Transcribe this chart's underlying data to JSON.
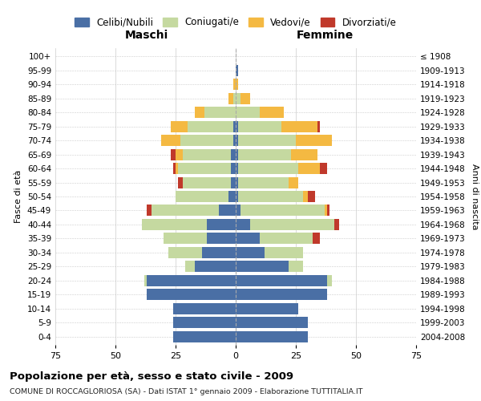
{
  "age_groups": [
    "0-4",
    "5-9",
    "10-14",
    "15-19",
    "20-24",
    "25-29",
    "30-34",
    "35-39",
    "40-44",
    "45-49",
    "50-54",
    "55-59",
    "60-64",
    "65-69",
    "70-74",
    "75-79",
    "80-84",
    "85-89",
    "90-94",
    "95-99",
    "100+"
  ],
  "birth_years": [
    "2004-2008",
    "1999-2003",
    "1994-1998",
    "1989-1993",
    "1984-1988",
    "1979-1983",
    "1974-1978",
    "1969-1973",
    "1964-1968",
    "1959-1963",
    "1954-1958",
    "1949-1953",
    "1944-1948",
    "1939-1943",
    "1934-1938",
    "1929-1933",
    "1924-1928",
    "1919-1923",
    "1914-1918",
    "1909-1913",
    "≤ 1908"
  ],
  "colors": {
    "celibi": "#4a6fa5",
    "coniugati": "#c5d9a0",
    "vedovi": "#f4b942",
    "divorziati": "#c0392b"
  },
  "maschi": {
    "celibi": [
      26,
      26,
      26,
      37,
      37,
      17,
      14,
      12,
      12,
      7,
      3,
      2,
      2,
      2,
      1,
      1,
      0,
      0,
      0,
      0,
      0
    ],
    "coniugati": [
      0,
      0,
      0,
      0,
      1,
      4,
      14,
      18,
      27,
      28,
      22,
      20,
      22,
      20,
      22,
      19,
      13,
      1,
      0,
      0,
      0
    ],
    "vedovi": [
      0,
      0,
      0,
      0,
      0,
      0,
      0,
      0,
      0,
      0,
      0,
      0,
      1,
      3,
      8,
      7,
      4,
      2,
      1,
      0,
      0
    ],
    "divorziati": [
      0,
      0,
      0,
      0,
      0,
      0,
      0,
      0,
      0,
      2,
      0,
      2,
      1,
      2,
      0,
      0,
      0,
      0,
      0,
      0,
      0
    ]
  },
  "femmine": {
    "celibi": [
      30,
      30,
      26,
      38,
      38,
      22,
      12,
      10,
      6,
      2,
      1,
      1,
      1,
      1,
      1,
      1,
      0,
      0,
      0,
      1,
      0
    ],
    "coniugati": [
      0,
      0,
      0,
      0,
      2,
      6,
      16,
      22,
      35,
      35,
      27,
      21,
      25,
      22,
      24,
      18,
      10,
      2,
      0,
      0,
      0
    ],
    "vedovi": [
      0,
      0,
      0,
      0,
      0,
      0,
      0,
      0,
      0,
      1,
      2,
      4,
      9,
      11,
      15,
      15,
      10,
      4,
      1,
      0,
      0
    ],
    "divorziati": [
      0,
      0,
      0,
      0,
      0,
      0,
      0,
      3,
      2,
      1,
      3,
      0,
      3,
      0,
      0,
      1,
      0,
      0,
      0,
      0,
      0
    ]
  },
  "xlim": 75,
  "title": "Popolazione per età, sesso e stato civile - 2009",
  "subtitle": "COMUNE DI ROCCAGLORIOSA (SA) - Dati ISTAT 1° gennaio 2009 - Elaborazione TUTTITALIA.IT",
  "xlabel_left": "Maschi",
  "xlabel_right": "Femmine",
  "ylabel_left": "Fasce di età",
  "ylabel_right": "Anni di nascita",
  "legend_labels": [
    "Celibi/Nubili",
    "Coniugati/e",
    "Vedovi/e",
    "Divorziati/e"
  ],
  "bg_color": "#ffffff",
  "grid_color": "#cccccc"
}
